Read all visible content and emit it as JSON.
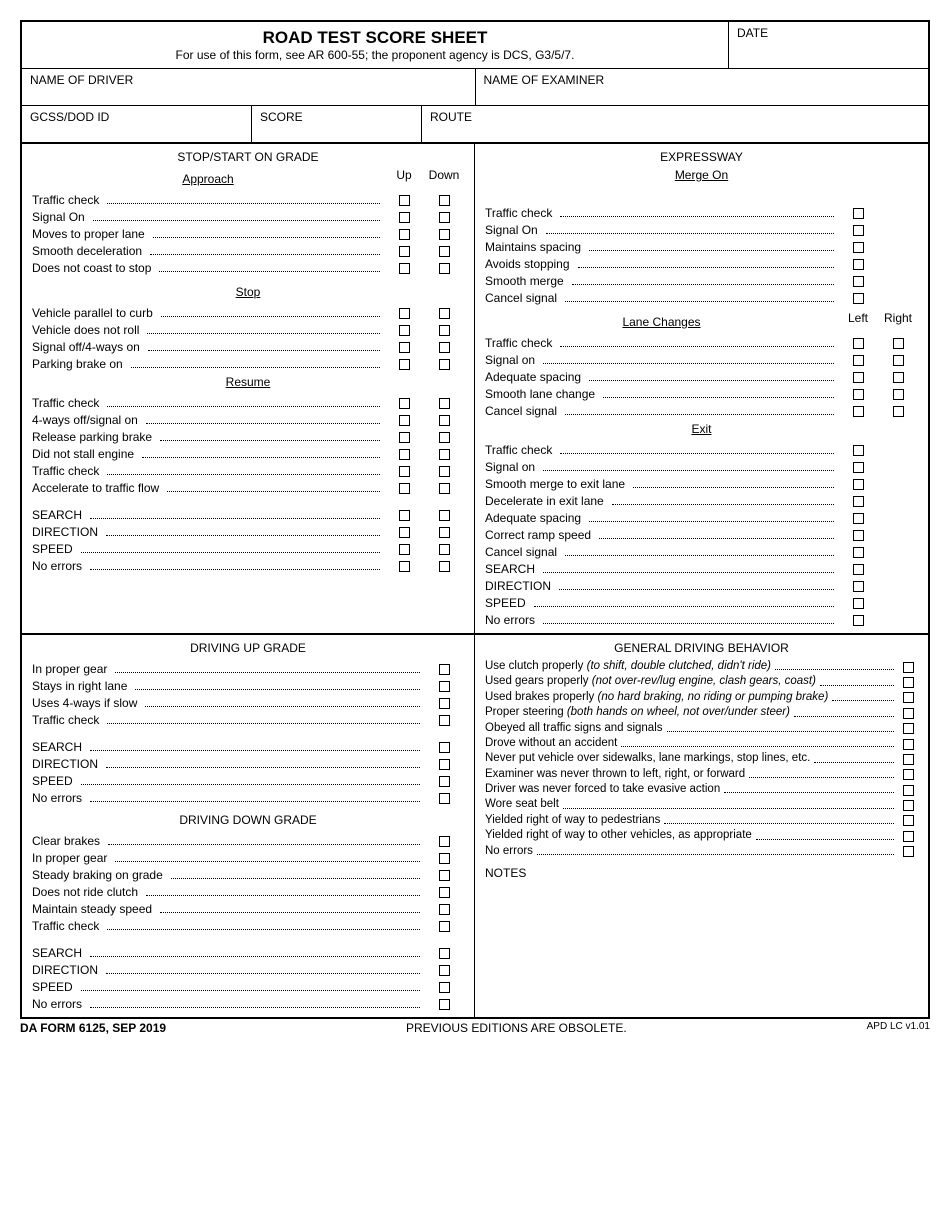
{
  "header": {
    "title": "ROAD TEST SCORE SHEET",
    "subtitle": "For use of this form, see AR 600-55; the proponent agency is DCS, G3/5/7.",
    "date_label": "DATE"
  },
  "fields": {
    "driver": "NAME OF DRIVER",
    "examiner": "NAME OF EXAMINER",
    "gcss": "GCSS/DOD ID",
    "score": "SCORE",
    "route": "ROUTE"
  },
  "left_top": {
    "title": "STOP/START ON GRADE",
    "col_up": "Up",
    "col_down": "Down",
    "approach": {
      "title": "Approach",
      "items": [
        "Traffic check",
        "Signal On",
        "Moves to proper lane",
        "Smooth deceleration",
        "Does not coast to stop"
      ]
    },
    "stop": {
      "title": "Stop",
      "items": [
        "Vehicle parallel to curb",
        "Vehicle does not roll",
        "Signal off/4-ways on",
        "Parking brake on"
      ]
    },
    "resume": {
      "title": "Resume",
      "items": [
        "Traffic check",
        "4-ways off/signal on",
        "Release parking brake",
        "Did not stall engine",
        "Traffic check",
        "Accelerate to traffic flow"
      ],
      "tail": [
        "SEARCH",
        "DIRECTION",
        "SPEED",
        "No errors"
      ]
    }
  },
  "right_top": {
    "title": "EXPRESSWAY",
    "merge": {
      "title": "Merge On",
      "items": [
        "Traffic check",
        "Signal On",
        "Maintains spacing",
        "Avoids stopping",
        "Smooth merge",
        "Cancel signal"
      ]
    },
    "lanes": {
      "title": "Lane Changes",
      "col_left": "Left",
      "col_right": "Right",
      "items": [
        "Traffic check",
        "Signal on",
        "Adequate spacing",
        "Smooth lane change",
        "Cancel signal"
      ]
    },
    "exit": {
      "title": "Exit",
      "items": [
        "Traffic check",
        "Signal on",
        "Smooth merge to exit lane",
        "Decelerate in exit lane",
        "Adequate spacing",
        "Correct ramp speed",
        "Cancel signal",
        "SEARCH",
        "DIRECTION",
        "SPEED",
        "No errors"
      ]
    }
  },
  "left_bottom": {
    "up": {
      "title": "DRIVING UP GRADE",
      "items": [
        "In proper gear",
        "Stays in right lane",
        "Uses 4-ways if slow",
        "Traffic check"
      ],
      "tail": [
        "SEARCH",
        "DIRECTION",
        "SPEED",
        "No errors"
      ]
    },
    "down": {
      "title": "DRIVING DOWN GRADE",
      "items": [
        "Clear brakes",
        "In proper gear",
        "Steady braking on grade",
        "Does not ride clutch",
        "Maintain steady speed",
        "Traffic check"
      ],
      "tail": [
        "SEARCH",
        "DIRECTION",
        "SPEED",
        "No errors"
      ]
    }
  },
  "right_bottom": {
    "title": "GENERAL DRIVING BEHAVIOR",
    "items": [
      {
        "t": "Use clutch properly ",
        "i": "(to shift, double clutched, didn't ride)"
      },
      {
        "t": "Used gears properly ",
        "i": "(not over-rev/lug engine, clash gears, coast)"
      },
      {
        "t": "Used brakes properly ",
        "i": "(no hard braking, no riding or pumping brake)"
      },
      {
        "t": "Proper steering ",
        "i": "(both hands on wheel, not over/under steer)"
      },
      {
        "t": "Obeyed all traffic signs and signals",
        "i": ""
      },
      {
        "t": "Drove without an accident",
        "i": ""
      },
      {
        "t": "Never put vehicle over sidewalks, lane markings, stop lines, etc.",
        "i": ""
      },
      {
        "t": "Examiner was never thrown to left, right, or forward",
        "i": ""
      },
      {
        "t": "Driver was never forced to take evasive action",
        "i": ""
      },
      {
        "t": "Wore seat belt",
        "i": ""
      },
      {
        "t": "Yielded right of way to pedestrians",
        "i": ""
      },
      {
        "t": "Yielded right of way to other vehicles, as appropriate",
        "i": ""
      },
      {
        "t": "No errors",
        "i": ""
      }
    ],
    "notes": "NOTES"
  },
  "footer": {
    "left": "DA FORM 6125, SEP 2019",
    "center": "PREVIOUS EDITIONS ARE OBSOLETE.",
    "right": "APD LC v1.01"
  }
}
